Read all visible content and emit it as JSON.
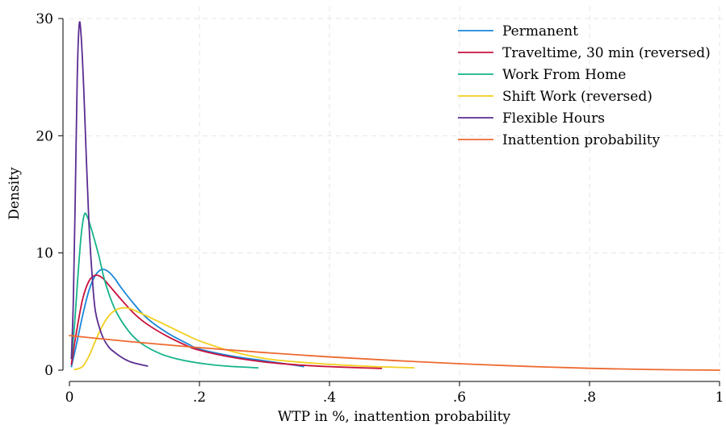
{
  "chart_data": {
    "type": "line",
    "title": "",
    "xlabel": "WTP in %, inattention probability",
    "ylabel": "Density",
    "xlim": [
      0,
      1
    ],
    "ylim": [
      0,
      30
    ],
    "xticks": [
      0,
      0.2,
      0.4,
      0.6,
      0.8,
      1
    ],
    "xtick_labels": [
      "0",
      ".2",
      ".4",
      ".6",
      ".8",
      "1"
    ],
    "yticks": [
      0,
      10,
      20,
      30
    ],
    "ytick_labels": [
      "0",
      "10",
      "20",
      "30"
    ],
    "grid": true,
    "legend_position": "top-right",
    "series": [
      {
        "name": "Permanent",
        "color": "#1a86d8",
        "points": [
          [
            0.003,
            0.3
          ],
          [
            0.01,
            2.0
          ],
          [
            0.02,
            4.6
          ],
          [
            0.03,
            6.8
          ],
          [
            0.04,
            8.1
          ],
          [
            0.05,
            8.6
          ],
          [
            0.06,
            8.4
          ],
          [
            0.07,
            7.8
          ],
          [
            0.08,
            7.0
          ],
          [
            0.1,
            5.6
          ],
          [
            0.12,
            4.4
          ],
          [
            0.15,
            3.2
          ],
          [
            0.18,
            2.3
          ],
          [
            0.2,
            1.8
          ],
          [
            0.25,
            1.2
          ],
          [
            0.3,
            0.8
          ],
          [
            0.35,
            0.4
          ],
          [
            0.36,
            0.3
          ]
        ]
      },
      {
        "name": "Traveltime, 30 min (reversed)",
        "color": "#c8103c",
        "points": [
          [
            0.003,
            0.5
          ],
          [
            0.01,
            3.0
          ],
          [
            0.02,
            6.0
          ],
          [
            0.03,
            7.6
          ],
          [
            0.04,
            8.1
          ],
          [
            0.05,
            7.9
          ],
          [
            0.06,
            7.3
          ],
          [
            0.08,
            6.0
          ],
          [
            0.1,
            4.8
          ],
          [
            0.12,
            3.9
          ],
          [
            0.15,
            2.9
          ],
          [
            0.18,
            2.1
          ],
          [
            0.2,
            1.7
          ],
          [
            0.25,
            1.1
          ],
          [
            0.3,
            0.7
          ],
          [
            0.35,
            0.45
          ],
          [
            0.4,
            0.3
          ],
          [
            0.45,
            0.2
          ],
          [
            0.48,
            0.15
          ]
        ]
      },
      {
        "name": "Work From Home",
        "color": "#15b38a",
        "points": [
          [
            0.003,
            1.0
          ],
          [
            0.008,
            4.0
          ],
          [
            0.013,
            8.0
          ],
          [
            0.018,
            11.5
          ],
          [
            0.023,
            13.3
          ],
          [
            0.028,
            13.0
          ],
          [
            0.035,
            11.8
          ],
          [
            0.045,
            9.8
          ],
          [
            0.055,
            7.5
          ],
          [
            0.07,
            5.2
          ],
          [
            0.09,
            3.4
          ],
          [
            0.11,
            2.3
          ],
          [
            0.14,
            1.4
          ],
          [
            0.17,
            0.9
          ],
          [
            0.2,
            0.6
          ],
          [
            0.24,
            0.35
          ],
          [
            0.29,
            0.2
          ]
        ]
      },
      {
        "name": "Shift Work (reversed)",
        "color": "#f2cf1d",
        "points": [
          [
            0.008,
            0.05
          ],
          [
            0.02,
            0.3
          ],
          [
            0.03,
            1.2
          ],
          [
            0.04,
            2.5
          ],
          [
            0.05,
            3.7
          ],
          [
            0.06,
            4.6
          ],
          [
            0.07,
            5.1
          ],
          [
            0.08,
            5.3
          ],
          [
            0.09,
            5.3
          ],
          [
            0.1,
            5.1
          ],
          [
            0.12,
            4.6
          ],
          [
            0.15,
            3.8
          ],
          [
            0.18,
            3.0
          ],
          [
            0.2,
            2.5
          ],
          [
            0.25,
            1.6
          ],
          [
            0.3,
            1.0
          ],
          [
            0.35,
            0.7
          ],
          [
            0.4,
            0.5
          ],
          [
            0.45,
            0.35
          ],
          [
            0.5,
            0.25
          ],
          [
            0.53,
            0.2
          ]
        ]
      },
      {
        "name": "Flexible Hours",
        "color": "#5a2d91",
        "points": [
          [
            0.003,
            1.0
          ],
          [
            0.006,
            6.0
          ],
          [
            0.009,
            15.0
          ],
          [
            0.012,
            25.0
          ],
          [
            0.015,
            29.5
          ],
          [
            0.018,
            28.5
          ],
          [
            0.022,
            24.0
          ],
          [
            0.026,
            18.0
          ],
          [
            0.03,
            12.5
          ],
          [
            0.035,
            8.0
          ],
          [
            0.04,
            5.0
          ],
          [
            0.05,
            3.0
          ],
          [
            0.06,
            2.0
          ],
          [
            0.07,
            1.5
          ],
          [
            0.08,
            1.1
          ],
          [
            0.09,
            0.8
          ],
          [
            0.1,
            0.6
          ],
          [
            0.12,
            0.35
          ]
        ]
      },
      {
        "name": "Inattention probability",
        "color": "#ed6a2f",
        "points": [
          [
            0.0,
            2.95
          ],
          [
            0.1,
            2.4
          ],
          [
            0.2,
            1.92
          ],
          [
            0.3,
            1.5
          ],
          [
            0.4,
            1.13
          ],
          [
            0.5,
            0.82
          ],
          [
            0.6,
            0.55
          ],
          [
            0.7,
            0.33
          ],
          [
            0.8,
            0.16
          ],
          [
            0.9,
            0.05
          ],
          [
            1.0,
            0.0
          ]
        ]
      }
    ]
  }
}
